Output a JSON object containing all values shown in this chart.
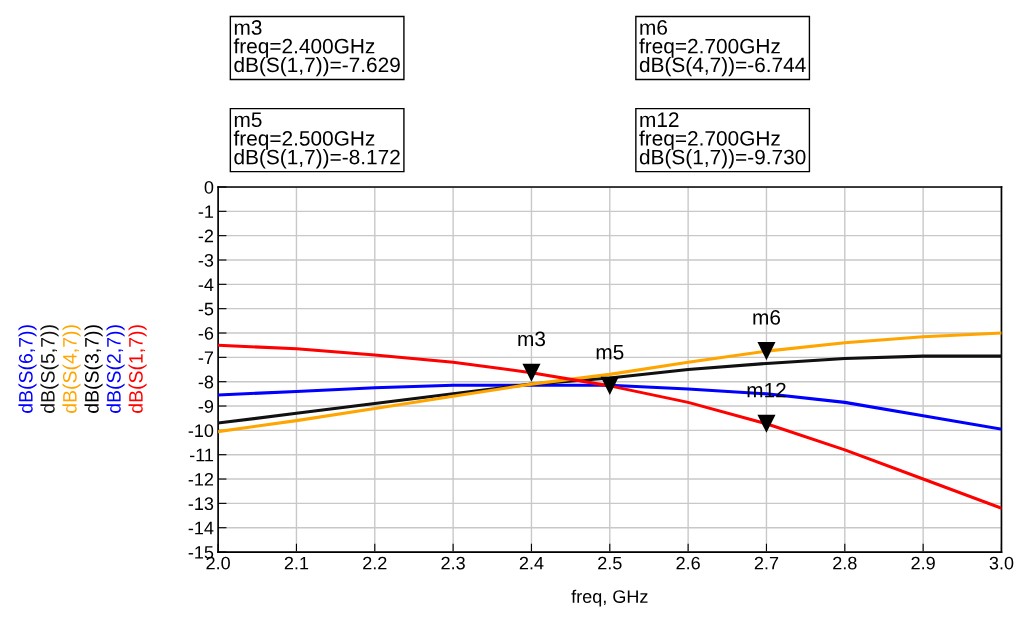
{
  "chart_data": {
    "type": "line",
    "xlabel": "freq, GHz",
    "x": [
      2.0,
      2.1,
      2.2,
      2.3,
      2.4,
      2.5,
      2.6,
      2.7,
      2.8,
      2.9,
      3.0
    ],
    "series": [
      {
        "name": "dB(S(6,7))",
        "color": "#0000ff",
        "values": [
          -8.55,
          -8.4,
          -8.25,
          -8.15,
          -8.15,
          -8.15,
          -8.3,
          -8.5,
          -8.85,
          -9.4,
          -9.95
        ]
      },
      {
        "name": "dB(S(5,7))",
        "color": "#111111",
        "values": [
          -9.7,
          -9.3,
          -8.9,
          -8.5,
          -8.1,
          -7.85,
          -7.5,
          -7.25,
          -7.05,
          -6.95,
          -6.95
        ]
      },
      {
        "name": "dB(S(4,7))",
        "color": "#ffa500",
        "values": [
          -10.05,
          -9.6,
          -9.1,
          -8.6,
          -8.1,
          -7.7,
          -7.2,
          -6.744,
          -6.4,
          -6.15,
          -6.0
        ]
      },
      {
        "name": "dB(S(3,7))",
        "color": "#000000",
        "values": [
          null,
          null,
          null,
          null,
          null,
          null,
          null,
          null,
          null,
          null,
          null
        ]
      },
      {
        "name": "dB(S(2,7))",
        "color": "#0000ff",
        "values": [
          null,
          null,
          null,
          null,
          null,
          null,
          null,
          null,
          null,
          null,
          null
        ]
      },
      {
        "name": "dB(S(1,7))",
        "color": "#ff0000",
        "values": [
          -6.5,
          -6.65,
          -6.9,
          -7.2,
          -7.629,
          -8.172,
          -8.85,
          -9.73,
          -10.8,
          -12.0,
          -13.2
        ]
      }
    ],
    "xlim": [
      2.0,
      3.0
    ],
    "xticks": [
      {
        "value": 2.0,
        "label": "2.0"
      },
      {
        "value": 2.1,
        "label": "2.1"
      },
      {
        "value": 2.2,
        "label": "2.2"
      },
      {
        "value": 2.3,
        "label": "2.3"
      },
      {
        "value": 2.4,
        "label": "2.4"
      },
      {
        "value": 2.5,
        "label": "2.5"
      },
      {
        "value": 2.6,
        "label": "2.6"
      },
      {
        "value": 2.7,
        "label": "2.7"
      },
      {
        "value": 2.8,
        "label": "2.8"
      },
      {
        "value": 2.9,
        "label": "2.9"
      },
      {
        "value": 3.0,
        "label": "3.0"
      }
    ],
    "ylim": [
      -15,
      0
    ],
    "yticks": [
      0,
      -1,
      -2,
      -3,
      -4,
      -5,
      -6,
      -7,
      -8,
      -9,
      -10,
      -11,
      -12,
      -13,
      -14,
      -15
    ],
    "grid": true,
    "legend": "left",
    "marker": "none",
    "line_style": "solid",
    "annotations": [
      "m3\nfreq=2.400GHz\ndB(S(1,7))=-7.629",
      "m5\nfreq=2.500GHz\ndB(S(1,7))=-8.172",
      "m6\nfreq=2.700GHz\ndB(S(4,7))=-6.744",
      "m12\nfreq=2.700GHz\ndB(S(1,7))=-9.730",
      {
        "text": "m3",
        "x": 2.4,
        "y": -7.629
      },
      {
        "text": "m5",
        "x": 2.5,
        "y": -8.172
      },
      {
        "text": "m6",
        "x": 2.7,
        "y": -6.744
      },
      {
        "text": "m12",
        "x": 2.7,
        "y": -9.73
      }
    ]
  }
}
